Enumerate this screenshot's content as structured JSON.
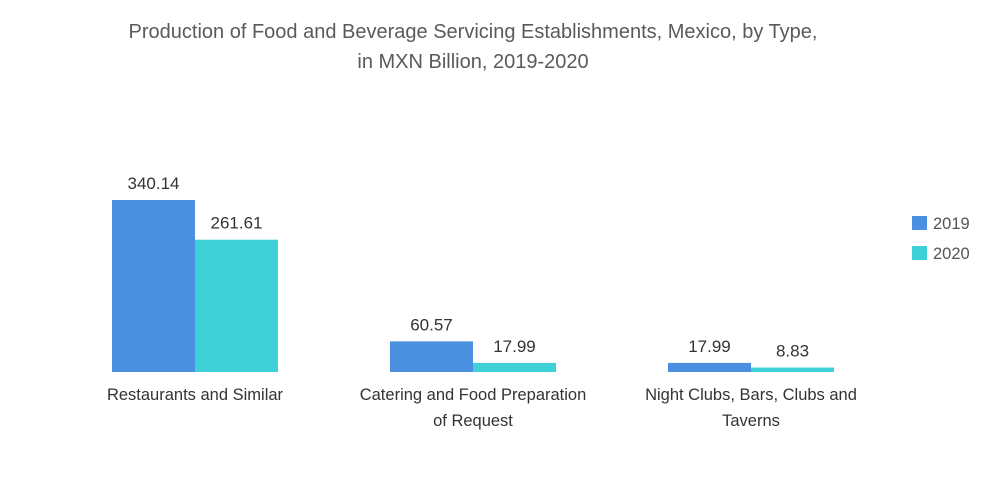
{
  "chart_data": {
    "type": "bar",
    "title_lines": [
      "Production of Food and Beverage Servicing Establishments, Mexico, by Type,",
      "in MXN Billion, 2019-2020"
    ],
    "categories": [
      [
        "Restaurants and Similar"
      ],
      [
        "Catering and Food Preparation",
        "of Request"
      ],
      [
        "Night Clubs, Bars, Clubs and",
        "Taverns"
      ]
    ],
    "series": [
      {
        "name": "2019",
        "color": "#4a8fe0",
        "values": [
          340.14,
          60.57,
          17.99
        ],
        "labels": [
          "340.14",
          "60.57",
          "17.99"
        ]
      },
      {
        "name": "2020",
        "color": "#40d0d8",
        "values": [
          261.61,
          17.99,
          8.83
        ],
        "labels": [
          "261.61",
          "17.99",
          "8.83"
        ]
      }
    ],
    "ylim": [
      0,
      340.14
    ],
    "grid": false,
    "legend_position": "right"
  }
}
